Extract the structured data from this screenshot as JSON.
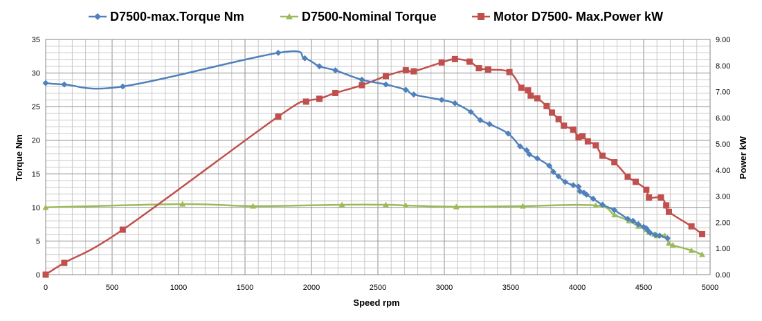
{
  "chart_data": {
    "type": "line",
    "title": "",
    "xlabel": "Speed rpm",
    "ylabel_left": "Torque Nm",
    "ylabel_right": "Power kW",
    "xlim": [
      0,
      5000
    ],
    "ylim_left": [
      0,
      35
    ],
    "ylim_right": [
      0,
      9
    ],
    "x_ticks": [
      "0",
      "500",
      "1000",
      "1500",
      "2000",
      "2500",
      "3000",
      "3500",
      "4000",
      "4500",
      "5000"
    ],
    "y_left_ticks": [
      "0",
      "5",
      "10",
      "15",
      "20",
      "25",
      "30",
      "35"
    ],
    "y_right_ticks": [
      "0.00",
      "1.00",
      "2.00",
      "3.00",
      "4.00",
      "5.00",
      "6.00",
      "7.00",
      "8.00",
      "9.00"
    ],
    "grid": true,
    "legend_position": "top",
    "series": [
      {
        "name": "D7500-max.Torque Nm",
        "axis": "left",
        "color": "#4F81BD",
        "marker": "diamond",
        "points": [
          [
            0,
            28.5
          ],
          [
            140,
            28.3
          ],
          [
            580,
            28.0
          ],
          [
            1750,
            33.0
          ],
          [
            1950,
            32.2
          ],
          [
            2060,
            31.0
          ],
          [
            2180,
            30.4
          ],
          [
            2380,
            29.0
          ],
          [
            2560,
            28.3
          ],
          [
            2710,
            27.5
          ],
          [
            2770,
            26.8
          ],
          [
            2980,
            26.0
          ],
          [
            3080,
            25.5
          ],
          [
            3200,
            24.2
          ],
          [
            3270,
            23.0
          ],
          [
            3340,
            22.4
          ],
          [
            3480,
            21.0
          ],
          [
            3570,
            19.1
          ],
          [
            3620,
            18.5
          ],
          [
            3640,
            17.9
          ],
          [
            3700,
            17.3
          ],
          [
            3790,
            16.2
          ],
          [
            3820,
            15.3
          ],
          [
            3860,
            14.6
          ],
          [
            3910,
            13.8
          ],
          [
            3970,
            13.3
          ],
          [
            4010,
            13.1
          ],
          [
            4020,
            12.4
          ],
          [
            4050,
            12.2
          ],
          [
            4070,
            11.9
          ],
          [
            4120,
            11.3
          ],
          [
            4190,
            10.4
          ],
          [
            4280,
            9.6
          ],
          [
            4380,
            8.3
          ],
          [
            4420,
            8.0
          ],
          [
            4460,
            7.5
          ],
          [
            4500,
            7.1
          ],
          [
            4520,
            6.9
          ],
          [
            4540,
            6.4
          ],
          [
            4550,
            6.2
          ],
          [
            4590,
            5.9
          ],
          [
            4620,
            5.8
          ],
          [
            4680,
            5.4
          ]
        ]
      },
      {
        "name": "D7500-Nominal Torque",
        "axis": "left",
        "color": "#9BBB59",
        "marker": "triangle",
        "points": [
          [
            0,
            10.0
          ],
          [
            1030,
            10.5
          ],
          [
            1560,
            10.2
          ],
          [
            2230,
            10.4
          ],
          [
            2560,
            10.4
          ],
          [
            2710,
            10.3
          ],
          [
            3090,
            10.1
          ],
          [
            3590,
            10.2
          ],
          [
            4140,
            10.3
          ],
          [
            4280,
            8.9
          ],
          [
            4390,
            8.0
          ],
          [
            4460,
            7.2
          ],
          [
            4520,
            6.7
          ],
          [
            4540,
            6.3
          ],
          [
            4580,
            6.0
          ],
          [
            4600,
            5.8
          ],
          [
            4660,
            5.8
          ],
          [
            4690,
            4.7
          ],
          [
            4720,
            4.4
          ],
          [
            4860,
            3.6
          ],
          [
            4940,
            3.0
          ]
        ]
      },
      {
        "name": "Motor D7500- Max.Power kW",
        "axis": "right",
        "color": "#C0504D",
        "marker": "square",
        "points": [
          [
            0,
            0.0
          ],
          [
            140,
            0.45
          ],
          [
            580,
            1.72
          ],
          [
            1750,
            6.05
          ],
          [
            1960,
            6.62
          ],
          [
            2060,
            6.73
          ],
          [
            2180,
            6.95
          ],
          [
            2380,
            7.25
          ],
          [
            2560,
            7.6
          ],
          [
            2710,
            7.82
          ],
          [
            2770,
            7.78
          ],
          [
            2980,
            8.12
          ],
          [
            3080,
            8.25
          ],
          [
            3190,
            8.15
          ],
          [
            3260,
            7.9
          ],
          [
            3330,
            7.85
          ],
          [
            3490,
            7.75
          ],
          [
            3580,
            7.15
          ],
          [
            3630,
            7.05
          ],
          [
            3650,
            6.85
          ],
          [
            3700,
            6.75
          ],
          [
            3770,
            6.45
          ],
          [
            3810,
            6.2
          ],
          [
            3860,
            5.95
          ],
          [
            3900,
            5.7
          ],
          [
            3970,
            5.55
          ],
          [
            4010,
            5.25
          ],
          [
            4040,
            5.3
          ],
          [
            4080,
            5.1
          ],
          [
            4140,
            4.95
          ],
          [
            4190,
            4.55
          ],
          [
            4280,
            4.3
          ],
          [
            4380,
            3.75
          ],
          [
            4440,
            3.55
          ],
          [
            4520,
            3.25
          ],
          [
            4540,
            2.95
          ],
          [
            4630,
            2.95
          ],
          [
            4670,
            2.65
          ],
          [
            4690,
            2.4
          ],
          [
            4860,
            1.85
          ],
          [
            4940,
            1.55
          ]
        ]
      }
    ]
  }
}
